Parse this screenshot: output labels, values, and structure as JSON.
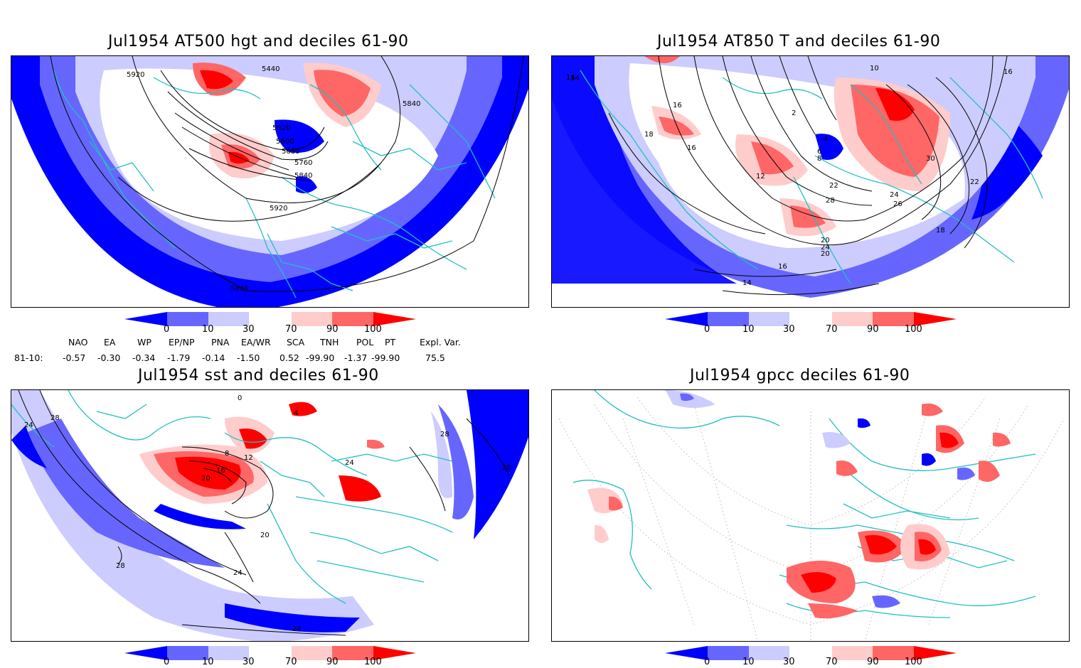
{
  "panels": [
    {
      "id": "at500",
      "title": "Jul1954 AT500 hgt and deciles 61-90",
      "contour_labels": [
        "5920",
        "5440",
        "5840",
        "5520",
        "5600",
        "5680",
        "5760",
        "5840",
        "5920",
        "5840"
      ]
    },
    {
      "id": "at850",
      "title": "Jul1954 AT850 T and deciles 61-90",
      "contour_labels": [
        "14",
        "16",
        "18",
        "16",
        "12",
        "2",
        "4",
        "6",
        "8",
        "10",
        "22",
        "24",
        "26",
        "28",
        "30",
        "16",
        "18",
        "14",
        "14",
        "20",
        "24",
        "22",
        "20",
        "16"
      ]
    },
    {
      "id": "sst",
      "title": "Jul1954 sst and deciles 61-90",
      "contour_labels": [
        "24",
        "28",
        "0",
        "4",
        "8",
        "12",
        "16",
        "20",
        "24",
        "28",
        "20",
        "24",
        "28",
        "24",
        "28"
      ]
    },
    {
      "id": "gpcc",
      "title": "Jul1954 gpcc deciles 61-90",
      "contour_labels": []
    }
  ],
  "colorbar": {
    "ticks": [
      "0",
      "10",
      "30",
      "70",
      "90",
      "100"
    ],
    "colors": [
      "#0000ff",
      "#6666ff",
      "#ccccff",
      "#ffffff",
      "#ffcccc",
      "#ff6666",
      "#ff0000"
    ]
  },
  "indices": {
    "headers": [
      "NAO",
      "EA",
      "WP",
      "EP/NP",
      "PNA",
      "EA/WR",
      "SCA",
      "TNH",
      "POL",
      "PT",
      "Expl. Var."
    ],
    "row_label": "81-10:",
    "values": [
      "-0.57",
      "-0.30",
      "-0.34",
      "-1.79",
      "-0.14",
      "-1.50",
      "0.52",
      "-99.90",
      "-1.37",
      "-99.90",
      "75.5"
    ]
  },
  "colors": {
    "coast": "#20c0c0",
    "contour": "#000000",
    "deep_blue": "#0000ff",
    "mid_blue": "#6666ff",
    "light_blue": "#ccccff",
    "light_red": "#ffcccc",
    "mid_red": "#ff6666",
    "deep_red": "#ff0000"
  }
}
